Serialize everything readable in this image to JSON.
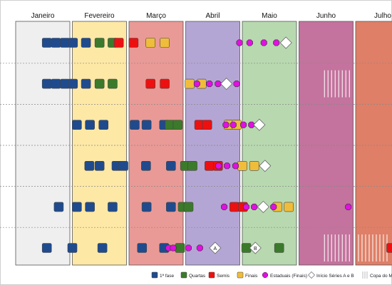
{
  "chart_data": {
    "type": "timeline",
    "months": [
      {
        "name": "Janeiro",
        "color": "#efefef"
      },
      {
        "name": "Fevereiro",
        "color": "#fde8a6"
      },
      {
        "name": "Março",
        "color": "#e99a96"
      },
      {
        "name": "Abril",
        "color": "#b4a6d4"
      },
      {
        "name": "Maio",
        "color": "#b8d9b0"
      },
      {
        "name": "Junho",
        "color": "#c3739d"
      },
      {
        "name": "Julho",
        "color": "#df7f67"
      }
    ],
    "row_count": 6,
    "categories": {
      "primeira_fase": {
        "label": "1ª fase",
        "color": "#1f4b8e",
        "shape": "square"
      },
      "quartas": {
        "label": "Quartas",
        "color": "#3b7a2a",
        "shape": "square"
      },
      "semis": {
        "label": "Semis",
        "color": "#ee1010",
        "shape": "square"
      },
      "finais": {
        "label": "Finais",
        "color": "#f0bd3a",
        "shape": "square"
      },
      "estaduais": {
        "label": "Estaduais (Finais)",
        "color": "#e010e0",
        "shape": "octagon"
      },
      "series": {
        "label": "Início Séries A e B",
        "color": "#ffffff",
        "shape": "diamond"
      },
      "copa": {
        "label": "Copa do M",
        "color": "#ffffff",
        "shape": "hatch"
      }
    },
    "events": [
      {
        "row": 0,
        "t": 0.55,
        "c": "primeira_fase"
      },
      {
        "row": 0,
        "t": 0.71,
        "c": "primeira_fase"
      },
      {
        "row": 0,
        "t": 0.87,
        "c": "primeira_fase"
      },
      {
        "row": 0,
        "t": 1.01,
        "c": "primeira_fase"
      },
      {
        "row": 0,
        "t": 1.24,
        "c": "primeira_fase"
      },
      {
        "row": 0,
        "t": 1.48,
        "c": "quartas"
      },
      {
        "row": 0,
        "t": 1.71,
        "c": "quartas"
      },
      {
        "row": 0,
        "t": 1.82,
        "c": "semis"
      },
      {
        "row": 0,
        "t": 2.08,
        "c": "semis"
      },
      {
        "row": 0,
        "t": 2.38,
        "c": "finais"
      },
      {
        "row": 0,
        "t": 2.63,
        "c": "finais"
      },
      {
        "row": 0,
        "t": 3.95,
        "c": "estaduais"
      },
      {
        "row": 0,
        "t": 4.13,
        "c": "estaduais"
      },
      {
        "row": 0,
        "t": 4.38,
        "c": "estaduais"
      },
      {
        "row": 0,
        "t": 4.6,
        "c": "estaduais"
      },
      {
        "row": 0,
        "t": 4.77,
        "c": "series"
      },
      {
        "row": 1,
        "t": 0.55,
        "c": "primeira_fase"
      },
      {
        "row": 1,
        "t": 0.71,
        "c": "primeira_fase"
      },
      {
        "row": 1,
        "t": 0.87,
        "c": "primeira_fase"
      },
      {
        "row": 1,
        "t": 1.01,
        "c": "primeira_fase"
      },
      {
        "row": 1,
        "t": 1.24,
        "c": "primeira_fase"
      },
      {
        "row": 1,
        "t": 1.48,
        "c": "quartas"
      },
      {
        "row": 1,
        "t": 1.71,
        "c": "quartas"
      },
      {
        "row": 1,
        "t": 2.38,
        "c": "semis"
      },
      {
        "row": 1,
        "t": 2.63,
        "c": "semis"
      },
      {
        "row": 1,
        "t": 3.07,
        "c": "finais"
      },
      {
        "row": 1,
        "t": 3.28,
        "c": "finais"
      },
      {
        "row": 1,
        "t": 3.2,
        "c": "estaduais"
      },
      {
        "row": 1,
        "t": 3.42,
        "c": "estaduais"
      },
      {
        "row": 1,
        "t": 3.57,
        "c": "estaduais"
      },
      {
        "row": 1,
        "t": 3.72,
        "c": "series"
      },
      {
        "row": 1,
        "t": 3.9,
        "c": "estaduais"
      },
      {
        "row": 2,
        "t": 1.08,
        "c": "primeira_fase"
      },
      {
        "row": 2,
        "t": 1.31,
        "c": "primeira_fase"
      },
      {
        "row": 2,
        "t": 1.55,
        "c": "primeira_fase"
      },
      {
        "row": 2,
        "t": 2.1,
        "c": "primeira_fase"
      },
      {
        "row": 2,
        "t": 2.31,
        "c": "primeira_fase"
      },
      {
        "row": 2,
        "t": 2.62,
        "c": "primeira_fase"
      },
      {
        "row": 2,
        "t": 2.72,
        "c": "quartas"
      },
      {
        "row": 2,
        "t": 2.86,
        "c": "quartas"
      },
      {
        "row": 2,
        "t": 3.24,
        "c": "semis"
      },
      {
        "row": 2,
        "t": 3.38,
        "c": "semis"
      },
      {
        "row": 2,
        "t": 3.76,
        "c": "finais"
      },
      {
        "row": 2,
        "t": 3.9,
        "c": "finais"
      },
      {
        "row": 2,
        "t": 3.71,
        "c": "estaduais"
      },
      {
        "row": 2,
        "t": 3.84,
        "c": "estaduais"
      },
      {
        "row": 2,
        "t": 4.02,
        "c": "estaduais"
      },
      {
        "row": 2,
        "t": 4.16,
        "c": "estaduais"
      },
      {
        "row": 2,
        "t": 4.3,
        "c": "series"
      },
      {
        "row": 3,
        "t": 1.3,
        "c": "primeira_fase"
      },
      {
        "row": 3,
        "t": 1.48,
        "c": "primeira_fase"
      },
      {
        "row": 3,
        "t": 1.78,
        "c": "primeira_fase"
      },
      {
        "row": 3,
        "t": 1.9,
        "c": "primeira_fase"
      },
      {
        "row": 3,
        "t": 2.3,
        "c": "primeira_fase"
      },
      {
        "row": 3,
        "t": 2.74,
        "c": "primeira_fase"
      },
      {
        "row": 3,
        "t": 2.99,
        "c": "quartas"
      },
      {
        "row": 3,
        "t": 3.12,
        "c": "quartas"
      },
      {
        "row": 3,
        "t": 3.42,
        "c": "semis"
      },
      {
        "row": 3,
        "t": 3.57,
        "c": "semis"
      },
      {
        "row": 3,
        "t": 4.0,
        "c": "finais"
      },
      {
        "row": 3,
        "t": 4.21,
        "c": "finais"
      },
      {
        "row": 3,
        "t": 3.58,
        "c": "estaduais"
      },
      {
        "row": 3,
        "t": 3.73,
        "c": "estaduais"
      },
      {
        "row": 3,
        "t": 3.88,
        "c": "estaduais"
      },
      {
        "row": 3,
        "t": 4.4,
        "c": "series"
      },
      {
        "row": 4,
        "t": 0.76,
        "c": "primeira_fase"
      },
      {
        "row": 4,
        "t": 1.08,
        "c": "primeira_fase"
      },
      {
        "row": 4,
        "t": 1.31,
        "c": "primeira_fase"
      },
      {
        "row": 4,
        "t": 1.71,
        "c": "primeira_fase"
      },
      {
        "row": 4,
        "t": 2.31,
        "c": "primeira_fase"
      },
      {
        "row": 4,
        "t": 2.74,
        "c": "primeira_fase"
      },
      {
        "row": 4,
        "t": 2.95,
        "c": "quartas"
      },
      {
        "row": 4,
        "t": 3.05,
        "c": "quartas"
      },
      {
        "row": 4,
        "t": 3.86,
        "c": "semis"
      },
      {
        "row": 4,
        "t": 4.01,
        "c": "semis"
      },
      {
        "row": 4,
        "t": 4.62,
        "c": "finais"
      },
      {
        "row": 4,
        "t": 4.82,
        "c": "finais"
      },
      {
        "row": 4,
        "t": 3.68,
        "c": "estaduais"
      },
      {
        "row": 4,
        "t": 4.07,
        "c": "estaduais"
      },
      {
        "row": 4,
        "t": 4.21,
        "c": "estaduais"
      },
      {
        "row": 4,
        "t": 4.37,
        "c": "series"
      },
      {
        "row": 4,
        "t": 4.55,
        "c": "estaduais"
      },
      {
        "row": 4,
        "t": 5.87,
        "c": "estaduais"
      },
      {
        "row": 5,
        "t": 0.55,
        "c": "primeira_fase"
      },
      {
        "row": 5,
        "t": 1.0,
        "c": "primeira_fase"
      },
      {
        "row": 5,
        "t": 1.53,
        "c": "primeira_fase"
      },
      {
        "row": 5,
        "t": 2.23,
        "c": "primeira_fase"
      },
      {
        "row": 5,
        "t": 2.62,
        "c": "primeira_fase"
      },
      {
        "row": 5,
        "t": 2.9,
        "c": "quartas"
      },
      {
        "row": 5,
        "t": 3.52,
        "c": "series",
        "label": "A"
      },
      {
        "row": 5,
        "t": 4.07,
        "c": "quartas"
      },
      {
        "row": 5,
        "t": 4.23,
        "c": "series",
        "label": "B"
      },
      {
        "row": 5,
        "t": 4.65,
        "c": "quartas"
      },
      {
        "row": 5,
        "t": 2.7,
        "c": "estaduais"
      },
      {
        "row": 5,
        "t": 2.78,
        "c": "estaduais"
      },
      {
        "row": 5,
        "t": 3.05,
        "c": "estaduais"
      },
      {
        "row": 5,
        "t": 3.25,
        "c": "estaduais"
      },
      {
        "row": 5,
        "t": 6.63,
        "c": "semis"
      },
      {
        "row": 5,
        "t": 6.82,
        "c": "semis"
      },
      {
        "row": 5,
        "t": 7.02,
        "c": "finais"
      },
      {
        "row": 5,
        "t": 7.22,
        "c": "finais"
      }
    ],
    "copa_marks": [
      {
        "row": 1,
        "t_start": 5.45,
        "t_end": 5.95
      },
      {
        "row": 5,
        "t_start": 5.45,
        "t_end": 5.95
      },
      {
        "row": 5,
        "t_start": 6.05,
        "t_end": 6.6
      }
    ]
  }
}
